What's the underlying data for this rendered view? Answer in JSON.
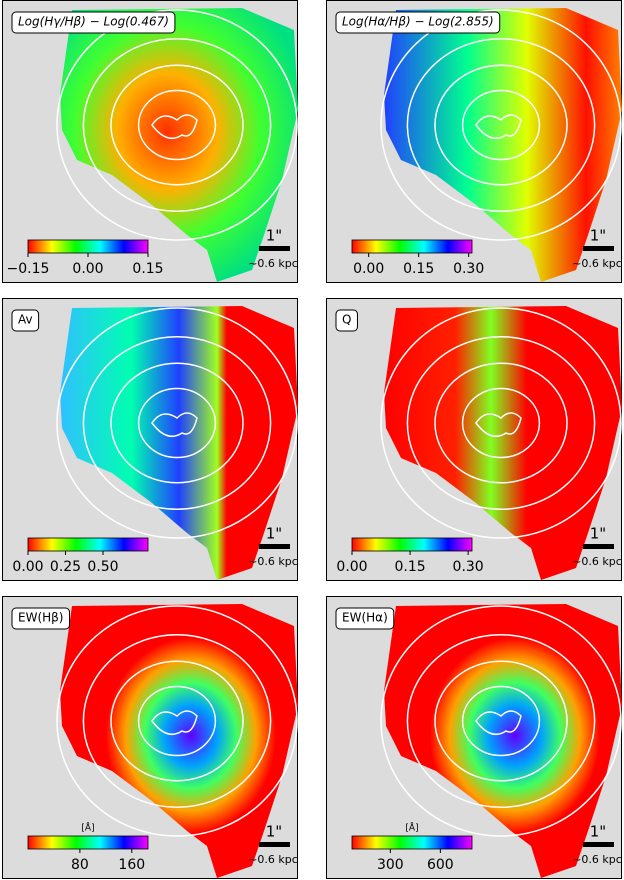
{
  "panels": [
    {
      "label": "Log(Hγ/Hβ) − Log(0.467)",
      "colorbar": {
        "lim": [
          -0.15,
          0.15
        ],
        "ticks": [
          {
            "value": -0.15,
            "label": "−0.15"
          },
          {
            "value": 0,
            "label": "0.00"
          },
          {
            "value": 0.15,
            "label": "0.15"
          }
        ]
      },
      "scale_label": "1\"",
      "scale_kpc": "~0.6 kpc"
    },
    {
      "label": "Log(Hα/Hβ) − Log(2.855)",
      "colorbar": {
        "lim": [
          -0.05,
          0.31
        ],
        "ticks": [
          {
            "value": 0,
            "label": "0.00"
          },
          {
            "value": 0.15,
            "label": "0.15"
          },
          {
            "value": 0.3,
            "label": "0.30"
          }
        ]
      },
      "scale_label": "1\"",
      "scale_kpc": "~0.6 kpc"
    },
    {
      "label": "Av",
      "colorbar": {
        "lim": [
          0,
          0.8
        ],
        "ticks": [
          {
            "value": 0,
            "label": "0.00"
          },
          0.25,
          {
            "value": 0.5,
            "label": "0.50"
          }
        ]
      },
      "scale_label": "1\"",
      "scale_kpc": "~0.6 kpc"
    },
    {
      "label": "Q",
      "colorbar": {
        "lim": [
          0,
          0.31
        ],
        "ticks": [
          {
            "value": 0,
            "label": "0.00"
          },
          0.15,
          {
            "value": 0.3,
            "label": "0.30"
          }
        ]
      },
      "scale_label": "1\"",
      "scale_kpc": "~0.6 kpc"
    },
    {
      "label": "EW(Hβ)",
      "colorbar": {
        "unit": "[Å]",
        "lim": [
          0,
          185
        ],
        "ticks": [
          80,
          160
        ]
      },
      "scale_label": "1\"",
      "scale_kpc": "~0.6 kpc"
    },
    {
      "label": "EW(Hα)",
      "colorbar": {
        "unit": "[Å]",
        "lim": [
          70,
          790
        ],
        "ticks": [
          300,
          600
        ]
      },
      "scale_label": "1\"",
      "scale_kpc": "~0.6 kpc"
    }
  ]
}
